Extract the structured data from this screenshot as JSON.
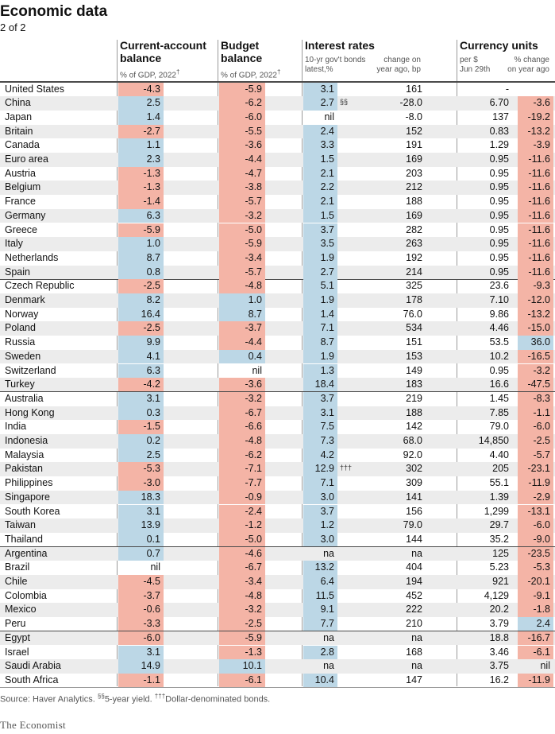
{
  "title": "Economic data",
  "subtitle": "2 of 2",
  "headers": {
    "current_account": {
      "title_line1": "Current-account",
      "title_line2": "balance",
      "sub": "% of GDP, 2022",
      "sub_mark": "†"
    },
    "budget": {
      "title_line1": "Budget",
      "title_line2": "balance",
      "sub": "% of GDP, 2022",
      "sub_mark": "†"
    },
    "interest": {
      "title": "Interest rates",
      "sub1_line1": "10-yr gov't bonds",
      "sub1_line2": "latest,%",
      "sub2_line1": "change on",
      "sub2_line2": "year ago, bp"
    },
    "currency": {
      "title": "Currency units",
      "sub1_line1": "per $",
      "sub1_line2": "Jun 29th",
      "sub2_line1": "% change",
      "sub2_line2": "on year ago"
    }
  },
  "colors": {
    "positive": "#bcd7e6",
    "negative": "#f4b4a6",
    "row_alt": "#ececec",
    "divider": "#4a4a4a"
  },
  "chart_data": {
    "type": "table",
    "columns": [
      "Current-account balance",
      "Budget balance",
      "Interest rates 10-yr gov't bonds latest,%",
      "Interest rates change on year ago, bp",
      "Currency units per $ Jun 29th",
      "Currency units % change on year ago"
    ],
    "group_breaks_after": [
      "Canada",
      "Spain",
      "Turkey",
      "Thailand",
      "Peru"
    ],
    "rows": [
      {
        "country": "United States",
        "ca": "-4.3",
        "budget": "-5.9",
        "rate": "3.1",
        "mark": "",
        "change": "161",
        "fx": "-",
        "fxchg": ""
      },
      {
        "country": "China",
        "ca": "2.5",
        "budget": "-6.2",
        "rate": "2.7",
        "mark": "§§",
        "change": "-28.0",
        "fx": "6.70",
        "fxchg": "-3.6"
      },
      {
        "country": "Japan",
        "ca": "1.4",
        "budget": "-6.0",
        "rate": "nil",
        "mark": "",
        "change": "-8.0",
        "fx": "137",
        "fxchg": "-19.2"
      },
      {
        "country": "Britain",
        "ca": "-2.7",
        "budget": "-5.5",
        "rate": "2.4",
        "mark": "",
        "change": "152",
        "fx": "0.83",
        "fxchg": "-13.2"
      },
      {
        "country": "Canada",
        "ca": "1.1",
        "budget": "-3.6",
        "rate": "3.3",
        "mark": "",
        "change": "191",
        "fx": "1.29",
        "fxchg": "-3.9"
      },
      {
        "country": "Euro area",
        "ca": "2.3",
        "budget": "-4.4",
        "rate": "1.5",
        "mark": "",
        "change": "169",
        "fx": "0.95",
        "fxchg": "-11.6"
      },
      {
        "country": "Austria",
        "ca": "-1.3",
        "budget": "-4.7",
        "rate": "2.1",
        "mark": "",
        "change": "203",
        "fx": "0.95",
        "fxchg": "-11.6"
      },
      {
        "country": "Belgium",
        "ca": "-1.3",
        "budget": "-3.8",
        "rate": "2.2",
        "mark": "",
        "change": "212",
        "fx": "0.95",
        "fxchg": "-11.6"
      },
      {
        "country": "France",
        "ca": "-1.4",
        "budget": "-5.7",
        "rate": "2.1",
        "mark": "",
        "change": "188",
        "fx": "0.95",
        "fxchg": "-11.6"
      },
      {
        "country": "Germany",
        "ca": "6.3",
        "budget": "-3.2",
        "rate": "1.5",
        "mark": "",
        "change": "169",
        "fx": "0.95",
        "fxchg": "-11.6"
      },
      {
        "country": "Greece",
        "ca": "-5.9",
        "budget": "-5.0",
        "rate": "3.7",
        "mark": "",
        "change": "282",
        "fx": "0.95",
        "fxchg": "-11.6"
      },
      {
        "country": "Italy",
        "ca": "1.0",
        "budget": "-5.9",
        "rate": "3.5",
        "mark": "",
        "change": "263",
        "fx": "0.95",
        "fxchg": "-11.6"
      },
      {
        "country": "Netherlands",
        "ca": "8.7",
        "budget": "-3.4",
        "rate": "1.9",
        "mark": "",
        "change": "192",
        "fx": "0.95",
        "fxchg": "-11.6"
      },
      {
        "country": "Spain",
        "ca": "0.8",
        "budget": "-5.7",
        "rate": "2.7",
        "mark": "",
        "change": "214",
        "fx": "0.95",
        "fxchg": "-11.6"
      },
      {
        "country": "Czech Republic",
        "ca": "-2.5",
        "budget": "-4.8",
        "rate": "5.1",
        "mark": "",
        "change": "325",
        "fx": "23.6",
        "fxchg": "-9.3"
      },
      {
        "country": "Denmark",
        "ca": "8.2",
        "budget": "1.0",
        "rate": "1.9",
        "mark": "",
        "change": "178",
        "fx": "7.10",
        "fxchg": "-12.0"
      },
      {
        "country": "Norway",
        "ca": "16.4",
        "budget": "8.7",
        "rate": "1.4",
        "mark": "",
        "change": "76.0",
        "fx": "9.86",
        "fxchg": "-13.2"
      },
      {
        "country": "Poland",
        "ca": "-2.5",
        "budget": "-3.7",
        "rate": "7.1",
        "mark": "",
        "change": "534",
        "fx": "4.46",
        "fxchg": "-15.0"
      },
      {
        "country": "Russia",
        "ca": "9.9",
        "budget": "-4.4",
        "rate": "8.7",
        "mark": "",
        "change": "151",
        "fx": "53.5",
        "fxchg": "36.0"
      },
      {
        "country": "Sweden",
        "ca": "4.1",
        "budget": "0.4",
        "rate": "1.9",
        "mark": "",
        "change": "153",
        "fx": "10.2",
        "fxchg": "-16.5"
      },
      {
        "country": "Switzerland",
        "ca": "6.3",
        "budget": "nil",
        "rate": "1.3",
        "mark": "",
        "change": "149",
        "fx": "0.95",
        "fxchg": "-3.2"
      },
      {
        "country": "Turkey",
        "ca": "-4.2",
        "budget": "-3.6",
        "rate": "18.4",
        "mark": "",
        "change": "183",
        "fx": "16.6",
        "fxchg": "-47.5"
      },
      {
        "country": "Australia",
        "ca": "3.1",
        "budget": "-3.2",
        "rate": "3.7",
        "mark": "",
        "change": "219",
        "fx": "1.45",
        "fxchg": "-8.3"
      },
      {
        "country": "Hong Kong",
        "ca": "0.3",
        "budget": "-6.7",
        "rate": "3.1",
        "mark": "",
        "change": "188",
        "fx": "7.85",
        "fxchg": "-1.1"
      },
      {
        "country": "India",
        "ca": "-1.5",
        "budget": "-6.6",
        "rate": "7.5",
        "mark": "",
        "change": "142",
        "fx": "79.0",
        "fxchg": "-6.0"
      },
      {
        "country": "Indonesia",
        "ca": "0.2",
        "budget": "-4.8",
        "rate": "7.3",
        "mark": "",
        "change": "68.0",
        "fx": "14,850",
        "fxchg": "-2.5"
      },
      {
        "country": "Malaysia",
        "ca": "2.5",
        "budget": "-6.2",
        "rate": "4.2",
        "mark": "",
        "change": "92.0",
        "fx": "4.40",
        "fxchg": "-5.7"
      },
      {
        "country": "Pakistan",
        "ca": "-5.3",
        "budget": "-7.1",
        "rate": "12.9",
        "mark": "†††",
        "change": "302",
        "fx": "205",
        "fxchg": "-23.1"
      },
      {
        "country": "Philippines",
        "ca": "-3.0",
        "budget": "-7.7",
        "rate": "7.1",
        "mark": "",
        "change": "309",
        "fx": "55.1",
        "fxchg": "-11.9"
      },
      {
        "country": "Singapore",
        "ca": "18.3",
        "budget": "-0.9",
        "rate": "3.0",
        "mark": "",
        "change": "141",
        "fx": "1.39",
        "fxchg": "-2.9"
      },
      {
        "country": "South Korea",
        "ca": "3.1",
        "budget": "-2.4",
        "rate": "3.7",
        "mark": "",
        "change": "156",
        "fx": "1,299",
        "fxchg": "-13.1"
      },
      {
        "country": "Taiwan",
        "ca": "13.9",
        "budget": "-1.2",
        "rate": "1.2",
        "mark": "",
        "change": "79.0",
        "fx": "29.7",
        "fxchg": "-6.0"
      },
      {
        "country": "Thailand",
        "ca": "0.1",
        "budget": "-5.0",
        "rate": "3.0",
        "mark": "",
        "change": "144",
        "fx": "35.2",
        "fxchg": "-9.0"
      },
      {
        "country": "Argentina",
        "ca": "0.7",
        "budget": "-4.6",
        "rate": "na",
        "mark": "",
        "change": "na",
        "fx": "125",
        "fxchg": "-23.5"
      },
      {
        "country": "Brazil",
        "ca": "nil",
        "budget": "-6.7",
        "rate": "13.2",
        "mark": "",
        "change": "404",
        "fx": "5.23",
        "fxchg": "-5.3"
      },
      {
        "country": "Chile",
        "ca": "-4.5",
        "budget": "-3.4",
        "rate": "6.4",
        "mark": "",
        "change": "194",
        "fx": "921",
        "fxchg": "-20.1"
      },
      {
        "country": "Colombia",
        "ca": "-3.7",
        "budget": "-4.8",
        "rate": "11.5",
        "mark": "",
        "change": "452",
        "fx": "4,129",
        "fxchg": "-9.1"
      },
      {
        "country": "Mexico",
        "ca": "-0.6",
        "budget": "-3.2",
        "rate": "9.1",
        "mark": "",
        "change": "222",
        "fx": "20.2",
        "fxchg": "-1.8"
      },
      {
        "country": "Peru",
        "ca": "-3.3",
        "budget": "-2.5",
        "rate": "7.7",
        "mark": "",
        "change": "210",
        "fx": "3.79",
        "fxchg": "2.4"
      },
      {
        "country": "Egypt",
        "ca": "-6.0",
        "budget": "-5.9",
        "rate": "na",
        "mark": "",
        "change": "na",
        "fx": "18.8",
        "fxchg": "-16.7"
      },
      {
        "country": "Israel",
        "ca": "3.1",
        "budget": "-1.3",
        "rate": "2.8",
        "mark": "",
        "change": "168",
        "fx": "3.46",
        "fxchg": "-6.1"
      },
      {
        "country": "Saudi Arabia",
        "ca": "14.9",
        "budget": "10.1",
        "rate": "na",
        "mark": "",
        "change": "na",
        "fx": "3.75",
        "fxchg": "nil"
      },
      {
        "country": "South Africa",
        "ca": "-1.1",
        "budget": "-6.1",
        "rate": "10.4",
        "mark": "",
        "change": "147",
        "fx": "16.2",
        "fxchg": "-11.9"
      }
    ]
  },
  "footer": {
    "source": "Source: Haver Analytics.",
    "note1_mark": "§§",
    "note1": "5-year yield.",
    "note2_mark": "†††",
    "note2": "Dollar-denominated bonds.",
    "brand": "The Economist"
  }
}
